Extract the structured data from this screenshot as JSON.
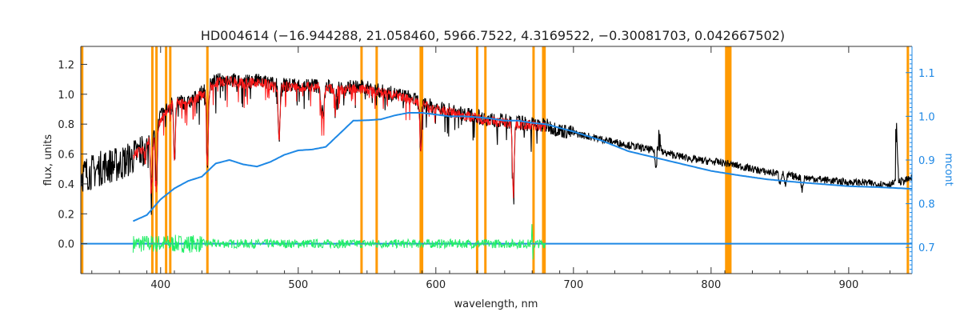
{
  "chart_data": {
    "type": "line",
    "title": "HD004614    (−16.944288, 21.058460, 5966.7522, 4.3169522, −0.30081703, 0.042667502)",
    "xlabel": "wavelength, nm",
    "ylabel": "flux, units",
    "y2label": "mcont",
    "xlim": [
      342,
      946
    ],
    "ylim": [
      -0.2,
      1.32
    ],
    "y2lim": [
      0.64,
      1.16
    ],
    "xticks": [
      400,
      500,
      600,
      700,
      800,
      900
    ],
    "yticks": [
      0.0,
      0.2,
      0.4,
      0.6,
      0.8,
      1.0,
      1.2
    ],
    "y2ticks": [
      0.7,
      0.8,
      0.9,
      1.0,
      1.1
    ],
    "xtick_labels": [
      "400",
      "500",
      "600",
      "700",
      "800",
      "900"
    ],
    "ytick_labels": [
      "0.0",
      "0.2",
      "0.4",
      "0.6",
      "0.8",
      "1.0",
      "1.2"
    ],
    "y2tick_labels": [
      "0.7",
      "0.8",
      "0.9",
      "1.0",
      "1.1"
    ],
    "grid": false,
    "colors": {
      "observed": "#000000",
      "model": "#ff1a1a",
      "residual": "#22ee66",
      "mcont": "#1e88e5",
      "mask": "#ff9a00",
      "axis": "#333333"
    },
    "mask_lines": [
      343,
      394,
      397,
      404,
      407,
      434,
      546,
      557,
      589,
      590,
      630,
      636,
      671,
      678,
      679,
      811,
      812,
      813,
      814,
      943
    ],
    "series": [
      {
        "role": "observed",
        "x": [
          342,
          350,
          360,
          370,
          380,
          390,
          400,
          410,
          420,
          430,
          440,
          450,
          460,
          470,
          480,
          490,
          500,
          510,
          520,
          530,
          540,
          550,
          560,
          570,
          580,
          590,
          600,
          610,
          620,
          630,
          640,
          650,
          660,
          670,
          680,
          690,
          700,
          710,
          720,
          730,
          740,
          750,
          760,
          770,
          780,
          790,
          800,
          810,
          820,
          830,
          840,
          850,
          860,
          870,
          880,
          890,
          900,
          910,
          920,
          930,
          940,
          946
        ],
        "values": [
          0.46,
          0.48,
          0.52,
          0.53,
          0.58,
          0.66,
          0.85,
          0.96,
          0.94,
          1.01,
          1.09,
          1.1,
          1.08,
          1.09,
          1.07,
          1.06,
          1.06,
          1.06,
          1.05,
          1.04,
          1.05,
          1.04,
          1.02,
          1.0,
          0.98,
          0.94,
          0.91,
          0.89,
          0.87,
          0.85,
          0.83,
          0.82,
          0.81,
          0.8,
          0.79,
          0.76,
          0.74,
          0.72,
          0.7,
          0.68,
          0.66,
          0.64,
          0.62,
          0.6,
          0.58,
          0.56,
          0.55,
          0.54,
          0.52,
          0.5,
          0.48,
          0.47,
          0.45,
          0.44,
          0.43,
          0.42,
          0.41,
          0.41,
          0.4,
          0.4,
          0.42,
          0.44
        ]
      },
      {
        "role": "model",
        "x": [
          380,
          390,
          400,
          410,
          420,
          430,
          440,
          450,
          460,
          470,
          480,
          490,
          500,
          510,
          520,
          530,
          540,
          550,
          560,
          570,
          580,
          590,
          600,
          610,
          620,
          630,
          640,
          650,
          660,
          670,
          680
        ],
        "values": [
          0.58,
          0.66,
          0.84,
          0.95,
          0.93,
          1.0,
          1.08,
          1.09,
          1.07,
          1.08,
          1.06,
          1.05,
          1.05,
          1.05,
          1.04,
          1.03,
          1.04,
          1.03,
          1.01,
          0.99,
          0.97,
          0.93,
          0.9,
          0.88,
          0.86,
          0.84,
          0.82,
          0.81,
          0.8,
          0.79,
          0.78
        ]
      },
      {
        "role": "mcont",
        "x": [
          380,
          390,
          400,
          410,
          420,
          430,
          440,
          450,
          460,
          470,
          480,
          490,
          500,
          510,
          520,
          530,
          540,
          550,
          560,
          570,
          580,
          590,
          600,
          610,
          620,
          630,
          640,
          650,
          660,
          670,
          680,
          700,
          720,
          740,
          760,
          780,
          800,
          820,
          840,
          860,
          880,
          900,
          920,
          940,
          946
        ],
        "values": [
          0.76,
          0.774,
          0.81,
          0.835,
          0.852,
          0.862,
          0.892,
          0.9,
          0.89,
          0.885,
          0.896,
          0.912,
          0.922,
          0.924,
          0.93,
          0.96,
          0.99,
          0.991,
          0.993,
          1.002,
          1.008,
          1.008,
          1.004,
          1.0,
          1.0,
          0.998,
          0.995,
          0.99,
          0.99,
          0.985,
          0.982,
          0.965,
          0.945,
          0.92,
          0.905,
          0.89,
          0.875,
          0.865,
          0.856,
          0.85,
          0.845,
          0.84,
          0.838,
          0.835,
          0.834
        ]
      },
      {
        "role": "residual",
        "x": [
          380,
          680
        ],
        "values": [
          0.0,
          0.0
        ]
      },
      {
        "role": "zero-line",
        "x": [
          342,
          946
        ],
        "values": [
          0.0,
          0.0
        ]
      }
    ],
    "absorption_lines": [
      {
        "x": 393.4,
        "depth": 0.36
      },
      {
        "x": 396.8,
        "depth": 0.42
      },
      {
        "x": 410.2,
        "depth": 0.38
      },
      {
        "x": 434.0,
        "depth": 0.5
      },
      {
        "x": 486.1,
        "depth": 0.37
      },
      {
        "x": 516.9,
        "depth": 0.16
      },
      {
        "x": 518.4,
        "depth": 0.18
      },
      {
        "x": 527.0,
        "depth": 0.1
      },
      {
        "x": 589.0,
        "depth": 0.32
      },
      {
        "x": 656.3,
        "depth": 0.47
      },
      {
        "x": 760.0,
        "depth": 0.12
      },
      {
        "x": 850.0,
        "depth": 0.06
      },
      {
        "x": 854.2,
        "depth": 0.08
      },
      {
        "x": 866.2,
        "depth": 0.08
      }
    ]
  }
}
